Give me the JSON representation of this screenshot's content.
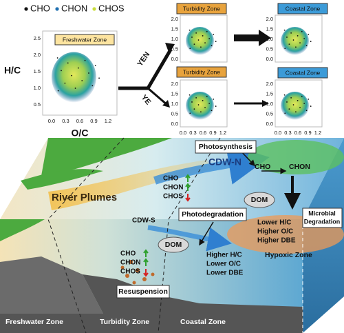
{
  "legend": [
    "CHO",
    "CHON",
    "CHOS"
  ],
  "main_plot": {
    "title": "Freshwater Zone",
    "y_label": "H/C",
    "x_label": "O/C",
    "y_ticks": [
      "0.5",
      "1.0",
      "1.5",
      "2.0",
      "2.5"
    ]
  },
  "x_ticks": [
    "0.0",
    "0.3",
    "0.6",
    "0.9",
    "1.2"
  ],
  "branches": [
    "YEN",
    "YE"
  ],
  "small_y_ticks": [
    "0.0",
    "0.5",
    "1.0",
    "1.5",
    "2.0"
  ],
  "small_plots": [
    {
      "title": "Turbidity Zone"
    },
    {
      "title": "Coastal Zone"
    },
    {
      "title": "Turbidity Zone"
    },
    {
      "title": "Coastal Zone"
    }
  ],
  "scene": {
    "photosynthesis": "Photosynthesis",
    "cdw_n": "CDW-N",
    "product_from": "CHO",
    "product_to": "CHON",
    "upper_changes": [
      "CHO",
      "CHON",
      "CHOS"
    ],
    "river_plumes": "River Plumes",
    "cdw_s": "CDW-S",
    "photodegradation": "Photodegradation",
    "dom_upper": "DOM",
    "microbial": [
      "Microbial",
      "Degradation"
    ],
    "hypoxic_traits": [
      "Lower H/C",
      "Higher O/C",
      "Higher DBE"
    ],
    "hypoxic_zone": "Hypoxic Zone",
    "dom_lower": "DOM",
    "lower_changes": [
      "CHO",
      "CHON",
      "CHOS"
    ],
    "coastal_traits": [
      "Higher H/C",
      "Lower O/C",
      "Lower DBE"
    ],
    "resuspension": "Resuspension",
    "zones": [
      "Freshwater Zone",
      "Turbidity Zone",
      "Coastal Zone"
    ]
  }
}
